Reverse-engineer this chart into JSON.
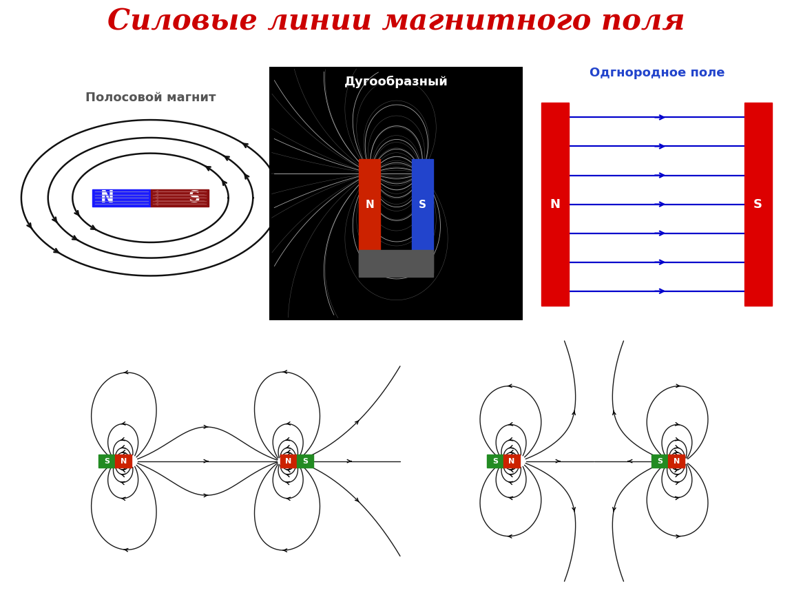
{
  "title": "Силовые линии магнитного поля",
  "title_color": "#cc0000",
  "title_fontsize": 30,
  "bg_color": "#ffffff",
  "label1": "Полосовой магнит",
  "label2": "Дугообразный",
  "label3": "Одгнородное поле",
  "label1_color": "#555555",
  "label2_color": "#ffffff",
  "label3_color": "#2244cc",
  "N_blue": "#1a1aff",
  "S_darkred": "#8b1010",
  "red_plate": "#dd0000",
  "arrow_blue": "#0000cc",
  "line_color": "#111111",
  "green_s": "#228B22",
  "red_n": "#cc2200"
}
